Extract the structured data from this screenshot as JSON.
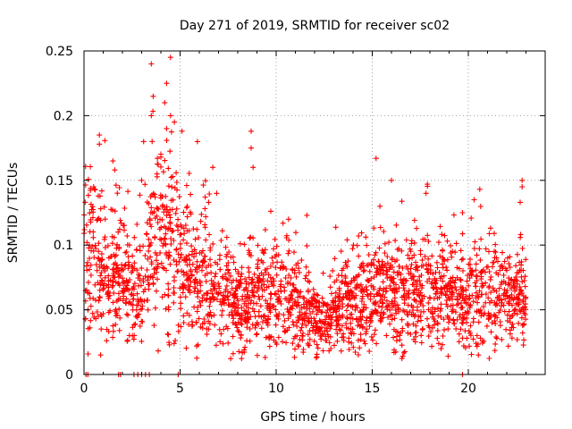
{
  "chart_data": {
    "type": "scatter",
    "title": "Day 271 of 2019, SRMTID for receiver sc02",
    "xlabel": "GPS time / hours",
    "ylabel": "SRMTID / TECUs",
    "xlim": [
      0,
      24
    ],
    "ylim": [
      0,
      0.25
    ],
    "x_ticks": [
      0,
      5,
      10,
      15,
      20
    ],
    "y_ticks": [
      0,
      0.05,
      0.1,
      0.15,
      0.2,
      0.25
    ],
    "x_tick_labels": [
      "0",
      "5",
      "10",
      "15",
      "20"
    ],
    "y_tick_labels": [
      "0",
      "0.05",
      "0.1",
      "0.15",
      "0.2",
      "0.25"
    ],
    "grid": true,
    "marker": "+",
    "series": [
      {
        "name": "SRMTID",
        "color": "#ff0000",
        "envelope": [
          {
            "x": 0.0,
            "y": 0.09
          },
          {
            "x": 0.5,
            "y": 0.1
          },
          {
            "x": 1.0,
            "y": 0.08
          },
          {
            "x": 1.5,
            "y": 0.07
          },
          {
            "x": 2.0,
            "y": 0.075
          },
          {
            "x": 2.5,
            "y": 0.07
          },
          {
            "x": 3.0,
            "y": 0.065
          },
          {
            "x": 3.5,
            "y": 0.1
          },
          {
            "x": 4.0,
            "y": 0.11
          },
          {
            "x": 4.5,
            "y": 0.1
          },
          {
            "x": 5.0,
            "y": 0.09
          },
          {
            "x": 5.5,
            "y": 0.085
          },
          {
            "x": 6.0,
            "y": 0.07
          },
          {
            "x": 7.0,
            "y": 0.065
          },
          {
            "x": 8.0,
            "y": 0.055
          },
          {
            "x": 9.0,
            "y": 0.06
          },
          {
            "x": 10.0,
            "y": 0.06
          },
          {
            "x": 11.0,
            "y": 0.055
          },
          {
            "x": 12.0,
            "y": 0.045
          },
          {
            "x": 12.5,
            "y": 0.04
          },
          {
            "x": 13.0,
            "y": 0.05
          },
          {
            "x": 14.0,
            "y": 0.055
          },
          {
            "x": 15.0,
            "y": 0.06
          },
          {
            "x": 16.0,
            "y": 0.065
          },
          {
            "x": 17.0,
            "y": 0.06
          },
          {
            "x": 18.0,
            "y": 0.065
          },
          {
            "x": 19.0,
            "y": 0.06
          },
          {
            "x": 20.0,
            "y": 0.055
          },
          {
            "x": 21.0,
            "y": 0.065
          },
          {
            "x": 22.0,
            "y": 0.06
          },
          {
            "x": 23.0,
            "y": 0.055
          }
        ],
        "points": [
          {
            "x": 3.5,
            "y": 0.24
          },
          {
            "x": 4.5,
            "y": 0.245
          },
          {
            "x": 4.3,
            "y": 0.225
          },
          {
            "x": 3.5,
            "y": 0.2
          },
          {
            "x": 4.2,
            "y": 0.21
          },
          {
            "x": 4.5,
            "y": 0.2
          },
          {
            "x": 4.7,
            "y": 0.195
          },
          {
            "x": 4.3,
            "y": 0.19
          },
          {
            "x": 3.6,
            "y": 0.215
          },
          {
            "x": 0.8,
            "y": 0.185
          },
          {
            "x": 0.8,
            "y": 0.178
          },
          {
            "x": 8.7,
            "y": 0.188
          },
          {
            "x": 5.9,
            "y": 0.18
          },
          {
            "x": 5.1,
            "y": 0.188
          },
          {
            "x": 3.1,
            "y": 0.18
          },
          {
            "x": 4.0,
            "y": 0.168
          },
          {
            "x": 8.7,
            "y": 0.175
          },
          {
            "x": 15.2,
            "y": 0.167
          },
          {
            "x": 1.5,
            "y": 0.165
          },
          {
            "x": 1.6,
            "y": 0.158
          },
          {
            "x": 6.7,
            "y": 0.16
          },
          {
            "x": 8.8,
            "y": 0.16
          },
          {
            "x": 16.0,
            "y": 0.15
          },
          {
            "x": 22.8,
            "y": 0.15
          },
          {
            "x": 22.8,
            "y": 0.145
          },
          {
            "x": 0.5,
            "y": 0.145
          },
          {
            "x": 17.8,
            "y": 0.14
          },
          {
            "x": 20.3,
            "y": 0.135
          },
          {
            "x": 22.7,
            "y": 0.133
          },
          {
            "x": 11.6,
            "y": 0.123
          },
          {
            "x": 3.0,
            "y": 0.15
          },
          {
            "x": 3.8,
            "y": 0.155
          },
          {
            "x": 6.9,
            "y": 0.14
          },
          {
            "x": 1.1,
            "y": 0.12
          },
          {
            "x": 19.7,
            "y": 0.125
          },
          {
            "x": 15.4,
            "y": 0.13
          }
        ],
        "zero_points": [
          {
            "x": 0.1,
            "y": 0
          },
          {
            "x": 0.2,
            "y": 0
          },
          {
            "x": 1.8,
            "y": 0
          },
          {
            "x": 1.9,
            "y": 0
          },
          {
            "x": 2.6,
            "y": 0
          },
          {
            "x": 2.8,
            "y": 0
          },
          {
            "x": 3.0,
            "y": 0
          },
          {
            "x": 3.2,
            "y": 0
          },
          {
            "x": 3.4,
            "y": 0
          },
          {
            "x": 4.9,
            "y": 0
          },
          {
            "x": 19.7,
            "y": 0
          }
        ],
        "time_range": [
          0,
          23
        ],
        "random_seed": 271,
        "count": 2400
      }
    ]
  }
}
